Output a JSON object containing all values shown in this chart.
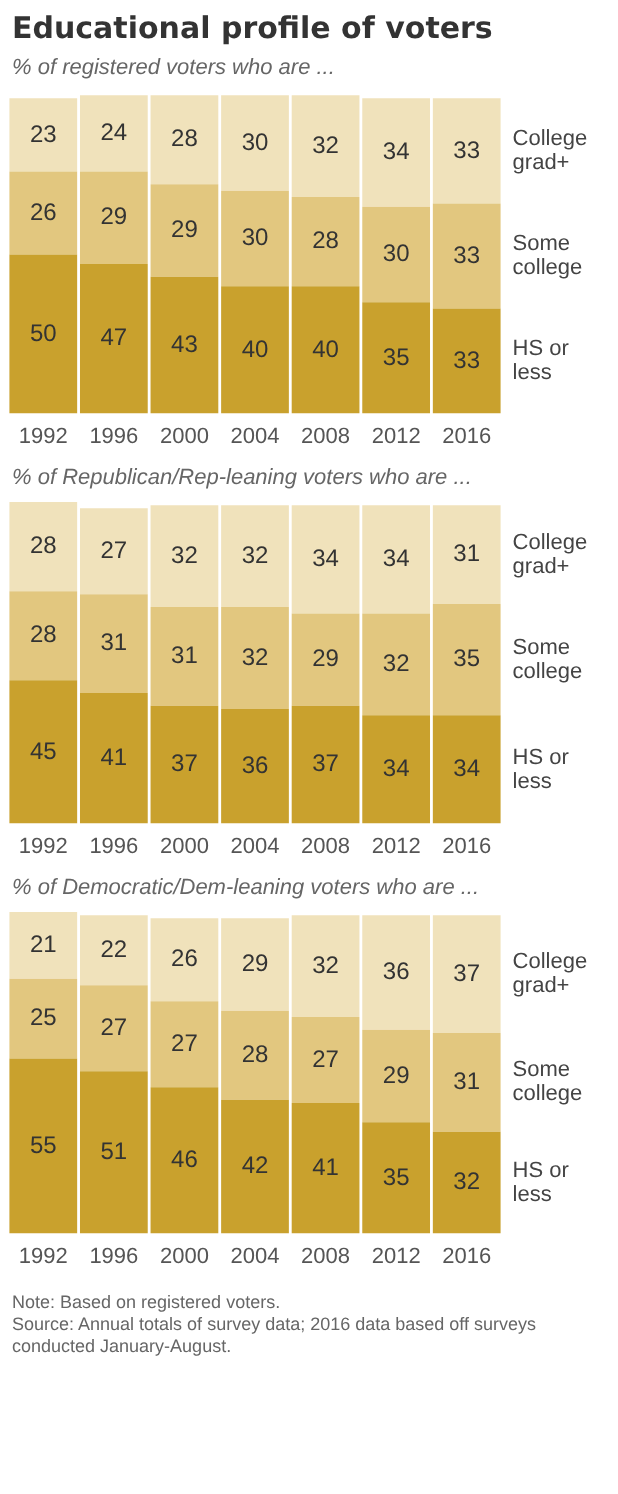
{
  "chart_data": [
    {
      "type": "bar",
      "title": "Educational profile of voters",
      "subtitle": "% of registered voters who are ...",
      "stacked": true,
      "data_labels": true,
      "legend": false,
      "tick_labels": "x",
      "ylim": [
        0,
        101
      ],
      "categories": [
        "1992",
        "1996",
        "2000",
        "2004",
        "2008",
        "2012",
        "2016"
      ],
      "series": [
        {
          "name": "HS or less",
          "color": "#c9a12d",
          "values": [
            50,
            47,
            43,
            40,
            40,
            35,
            33
          ]
        },
        {
          "name": "Some college",
          "color": "#e2c77f",
          "values": [
            26,
            29,
            29,
            30,
            28,
            30,
            33
          ]
        },
        {
          "name": "College grad+",
          "color": "#f0e2bb",
          "values": [
            23,
            24,
            28,
            30,
            32,
            34,
            33
          ]
        }
      ]
    },
    {
      "type": "bar",
      "subtitle": "% of Republican/Rep-leaning voters who are ...",
      "stacked": true,
      "data_labels": true,
      "legend": false,
      "tick_labels": "x",
      "ylim": [
        0,
        101
      ],
      "categories": [
        "1992",
        "1996",
        "2000",
        "2004",
        "2008",
        "2012",
        "2016"
      ],
      "series": [
        {
          "name": "HS or less",
          "color": "#c9a12d",
          "values": [
            45,
            41,
            37,
            36,
            37,
            34,
            34
          ]
        },
        {
          "name": "Some college",
          "color": "#e2c77f",
          "values": [
            28,
            31,
            31,
            32,
            29,
            32,
            35
          ]
        },
        {
          "name": "College grad+",
          "color": "#f0e2bb",
          "values": [
            28,
            27,
            32,
            32,
            34,
            34,
            31
          ]
        }
      ]
    },
    {
      "type": "bar",
      "subtitle": "% of Democratic/Dem-leaning voters who are ...",
      "stacked": true,
      "data_labels": true,
      "legend": false,
      "tick_labels": "x",
      "ylim": [
        0,
        101
      ],
      "categories": [
        "1992",
        "1996",
        "2000",
        "2004",
        "2008",
        "2012",
        "2016"
      ],
      "series": [
        {
          "name": "HS or less",
          "color": "#c9a12d",
          "values": [
            55,
            51,
            46,
            42,
            41,
            35,
            32
          ]
        },
        {
          "name": "Some college",
          "color": "#e2c77f",
          "values": [
            25,
            27,
            27,
            28,
            27,
            29,
            31
          ]
        },
        {
          "name": "College grad+",
          "color": "#f0e2bb",
          "values": [
            21,
            22,
            26,
            29,
            32,
            36,
            37
          ]
        }
      ],
      "annotations": [
        "Note: Based on registered voters.",
        "Source: Annual totals of survey data; 2016 data based off surveys conducted January-August."
      ]
    }
  ]
}
